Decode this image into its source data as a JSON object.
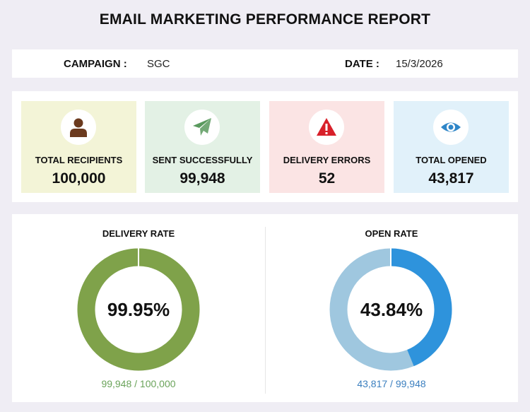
{
  "report": {
    "title": "EMAIL MARKETING PERFORMANCE REPORT"
  },
  "info": {
    "campaign_label": "CAMPAIGN :",
    "campaign_value": "SGC",
    "date_label": "DATE :",
    "date_value": "15/3/2026"
  },
  "cards": [
    {
      "label": "TOTAL RECIPIENTS",
      "value": "100,000",
      "icon": "person-icon",
      "bg": "#f3f4d7",
      "icon_color": "#6b3a1e"
    },
    {
      "label": "SENT SUCCESSFULLY",
      "value": "99,948",
      "icon": "paper-plane-icon",
      "bg": "#e3f1e5",
      "icon_color": "#5a9a5e"
    },
    {
      "label": "DELIVERY ERRORS",
      "value": "52",
      "icon": "warning-icon",
      "bg": "#fbe4e4",
      "icon_color": "#d8202a"
    },
    {
      "label": "TOTAL OPENED",
      "value": "43,817",
      "icon": "eye-icon",
      "bg": "#e1f1fa",
      "icon_color": "#2f86c8"
    }
  ],
  "chart_data": [
    {
      "type": "pie",
      "title": "DELIVERY RATE",
      "center_label": "99.95%",
      "caption": "99,948 / 100,000",
      "value": 99948,
      "total": 100000,
      "color": "#7fa24a",
      "remainder_color": "#e8e8e8",
      "caption_color": "#6aa35a"
    },
    {
      "type": "pie",
      "title": "OPEN RATE",
      "center_label": "43.84%",
      "caption": "43,817 / 99,948",
      "value": 43817,
      "total": 99948,
      "color": "#2e93dc",
      "remainder_color": "#9fc7df",
      "caption_color": "#3b7fbf"
    }
  ]
}
